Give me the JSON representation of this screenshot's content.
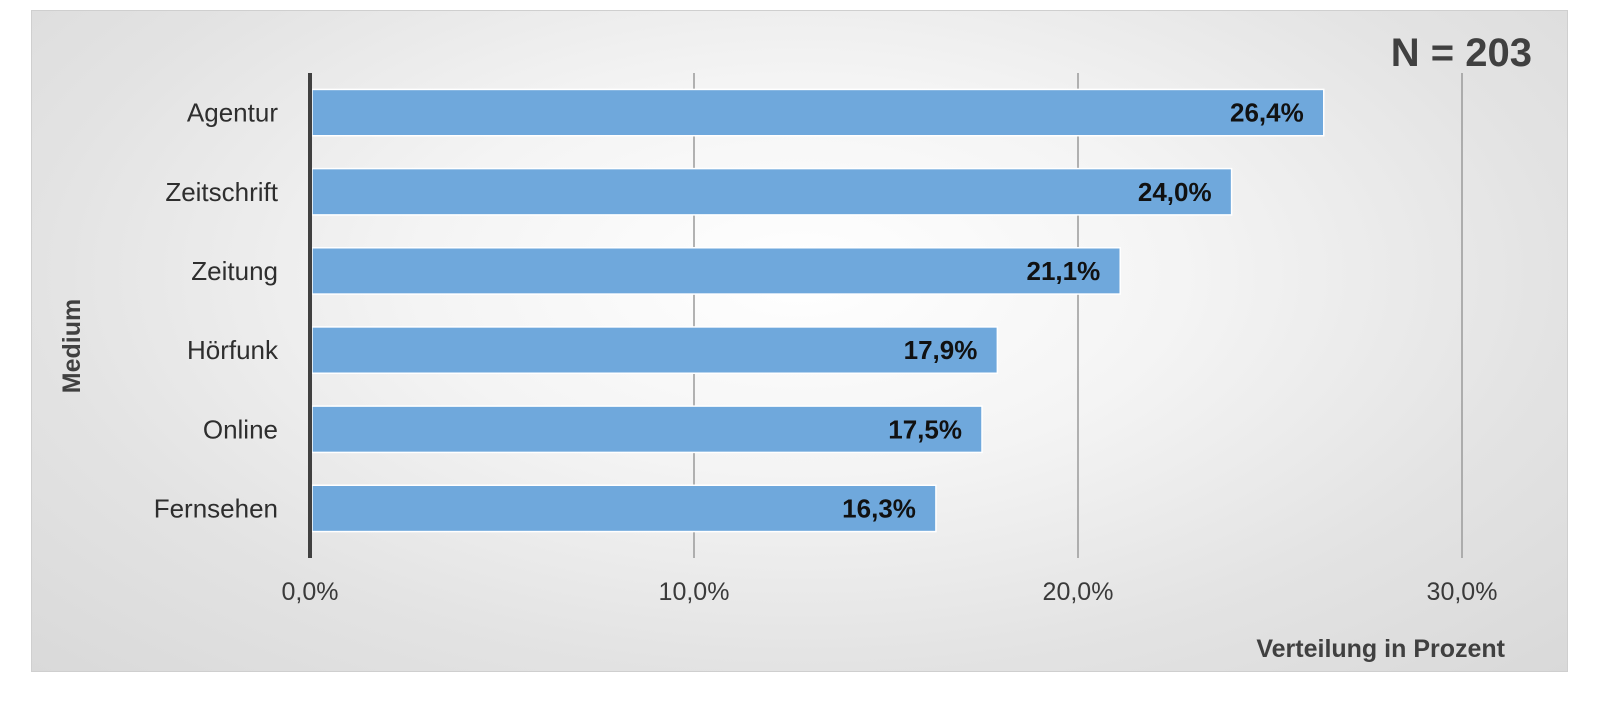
{
  "chart_data": {
    "type": "bar",
    "orientation": "horizontal",
    "categories": [
      "Agentur",
      "Zeitschrift",
      "Zeitung",
      "Hörfunk",
      "Online",
      "Fernsehen"
    ],
    "values": [
      26.4,
      24.0,
      21.1,
      17.9,
      17.5,
      16.3
    ],
    "value_labels": [
      "26,4%",
      "24,0%",
      "21,1%",
      "17,9%",
      "17,5%",
      "16,3%"
    ],
    "x_ticks": [
      0,
      10,
      20,
      30
    ],
    "x_tick_labels": [
      "0,0%",
      "10,0%",
      "20,0%",
      "30,0%"
    ],
    "xlim": [
      0,
      30
    ],
    "xlabel": "Verteilung in Prozent",
    "ylabel": "Medium",
    "annotation": "N = 203",
    "grid": "vertical",
    "bar_color": "#6fa8dc"
  }
}
